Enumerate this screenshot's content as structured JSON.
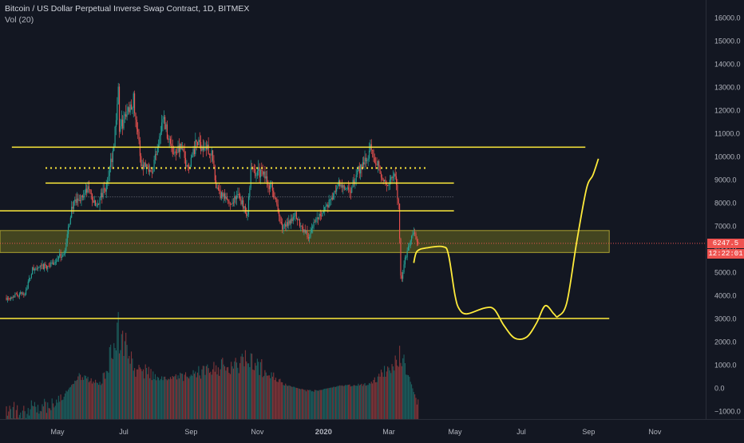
{
  "legend": {
    "symbol_line": "Bitcoin / US Dollar Perpetual Inverse Swap Contract, 1D, BITMEX",
    "volume_line": "Vol (20)"
  },
  "price_tag": {
    "last_price": "6247.5",
    "countdown": "12:22:01"
  },
  "colors": {
    "background": "#131722",
    "up": "#26a69a",
    "down": "#ef5350",
    "drawing": "#ffeb3b",
    "axis_text": "#b2b5be",
    "zone_fill": "#6b6b1f"
  },
  "chart_data": {
    "type": "candlestick",
    "title": "Bitcoin / US Dollar Perpetual Inverse Swap Contract, 1D, BITMEX",
    "ylim": [
      -1500,
      16700
    ],
    "y_ticks": [
      16000,
      15000,
      14000,
      13000,
      12000,
      11000,
      10000,
      9000,
      8000,
      7000,
      6000,
      5000,
      4000,
      3000,
      2000,
      1000,
      0,
      -1000
    ],
    "y_tick_labels": [
      "16000.0",
      "15000.0",
      "14000.0",
      "13000.0",
      "12000.0",
      "11000.0",
      "10000.0",
      "9000.0",
      "8000.0",
      "7000.0",
      "6000.0",
      "5000.0",
      "4000.0",
      "3000.0",
      "2000.0",
      "1000.0",
      "0.0",
      "−1000.0"
    ],
    "x_ticks": [
      "2019-05-01",
      "2019-07-01",
      "2019-09-01",
      "2019-11-01",
      "2020-01-01",
      "2020-03-01",
      "2020-05-01",
      "2020-07-01",
      "2020-09-01",
      "2020-11-01"
    ],
    "x_tick_labels": [
      "May",
      "Jul",
      "Sep",
      "Nov",
      "2020",
      "Mar",
      "May",
      "Jul",
      "Sep",
      "Nov"
    ],
    "grid": false,
    "price_path": [
      [
        "2019-03-15",
        3900
      ],
      [
        "2019-04-01",
        4100
      ],
      [
        "2019-04-08",
        5100
      ],
      [
        "2019-04-25",
        5300
      ],
      [
        "2019-05-08",
        5900
      ],
      [
        "2019-05-14",
        7800
      ],
      [
        "2019-05-20",
        8100
      ],
      [
        "2019-05-30",
        8600
      ],
      [
        "2019-06-05",
        7800
      ],
      [
        "2019-06-15",
        8700
      ],
      [
        "2019-06-22",
        10500
      ],
      [
        "2019-06-26",
        13000
      ],
      [
        "2019-06-27",
        11100
      ],
      [
        "2019-07-03",
        11800
      ],
      [
        "2019-07-10",
        12500
      ],
      [
        "2019-07-17",
        9700
      ],
      [
        "2019-07-28",
        9500
      ],
      [
        "2019-08-06",
        11700
      ],
      [
        "2019-08-15",
        10200
      ],
      [
        "2019-08-22",
        10400
      ],
      [
        "2019-08-29",
        9500
      ],
      [
        "2019-09-06",
        10600
      ],
      [
        "2019-09-20",
        10200
      ],
      [
        "2019-09-24",
        8500
      ],
      [
        "2019-10-06",
        8000
      ],
      [
        "2019-10-15",
        8300
      ],
      [
        "2019-10-23",
        7500
      ],
      [
        "2019-10-26",
        9400
      ],
      [
        "2019-11-05",
        9300
      ],
      [
        "2019-11-15",
        8600
      ],
      [
        "2019-11-22",
        7200
      ],
      [
        "2019-11-25",
        6900
      ],
      [
        "2019-12-05",
        7500
      ],
      [
        "2019-12-18",
        6500
      ],
      [
        "2019-12-25",
        7300
      ],
      [
        "2020-01-08",
        8100
      ],
      [
        "2020-01-15",
        8800
      ],
      [
        "2020-01-25",
        8400
      ],
      [
        "2020-02-02",
        9400
      ],
      [
        "2020-02-13",
        10300
      ],
      [
        "2020-02-20",
        9700
      ],
      [
        "2020-02-27",
        8700
      ],
      [
        "2020-03-07",
        9100
      ],
      [
        "2020-03-10",
        7900
      ],
      [
        "2020-03-12",
        4800
      ],
      [
        "2020-03-13",
        4700
      ],
      [
        "2020-03-15",
        5400
      ],
      [
        "2020-03-20",
        6200
      ],
      [
        "2020-03-24",
        6700
      ],
      [
        "2020-03-28",
        6250
      ]
    ],
    "volume_path": [
      [
        "2019-03-15",
        -1300
      ],
      [
        "2019-05-01",
        -800
      ],
      [
        "2019-05-20",
        600
      ],
      [
        "2019-06-10",
        200
      ],
      [
        "2019-06-26",
        2900
      ],
      [
        "2019-07-10",
        1100
      ],
      [
        "2019-08-10",
        400
      ],
      [
        "2019-09-24",
        1000
      ],
      [
        "2019-10-26",
        1500
      ],
      [
        "2019-11-25",
        200
      ],
      [
        "2019-12-20",
        -200
      ],
      [
        "2020-01-15",
        100
      ],
      [
        "2020-02-13",
        200
      ],
      [
        "2020-03-12",
        1700
      ],
      [
        "2020-03-28",
        -800
      ]
    ],
    "zone": {
      "y_low": 5850,
      "y_high": 6800,
      "x_start": "2019-03-01",
      "x_end": "2020-09-20"
    },
    "last_price": 6247.5,
    "horizontal_lines": [
      {
        "y": 10400,
        "x_start": "2019-03-20",
        "x_end": "2020-08-29",
        "style": "solid"
      },
      {
        "y": 9500,
        "x_start": "2019-04-20",
        "x_end": "2020-04-05",
        "style": "dotted"
      },
      {
        "y": 8850,
        "x_start": "2019-04-20",
        "x_end": "2020-04-30",
        "style": "solid"
      },
      {
        "y": 8250,
        "x_start": "2019-05-25",
        "x_end": "2020-04-30",
        "style": "thin-dotted"
      },
      {
        "y": 7650,
        "x_start": "2019-03-01",
        "x_end": "2020-04-30",
        "style": "solid"
      },
      {
        "y": 3000,
        "x_start": "2019-03-01",
        "x_end": "2020-09-20",
        "style": "solid"
      }
    ],
    "projection": [
      [
        "2020-03-24",
        5400
      ],
      [
        "2020-03-27",
        5900
      ],
      [
        "2020-04-05",
        6050
      ],
      [
        "2020-04-20",
        6100
      ],
      [
        "2020-04-25",
        5750
      ],
      [
        "2020-05-01",
        4000
      ],
      [
        "2020-05-05",
        3400
      ],
      [
        "2020-05-12",
        3200
      ],
      [
        "2020-05-28",
        3450
      ],
      [
        "2020-06-06",
        3400
      ],
      [
        "2020-06-15",
        2700
      ],
      [
        "2020-06-25",
        2150
      ],
      [
        "2020-07-06",
        2200
      ],
      [
        "2020-07-15",
        2800
      ],
      [
        "2020-07-23",
        3550
      ],
      [
        "2020-07-31",
        3200
      ],
      [
        "2020-08-04",
        3100
      ],
      [
        "2020-08-12",
        3700
      ],
      [
        "2020-08-21",
        6300
      ],
      [
        "2020-08-30",
        8600
      ],
      [
        "2020-09-05",
        9200
      ],
      [
        "2020-09-10",
        9900
      ]
    ]
  }
}
